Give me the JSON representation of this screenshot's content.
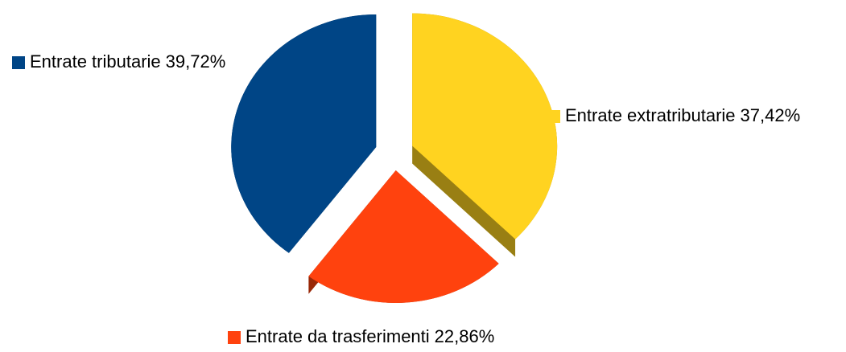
{
  "chart_data": {
    "type": "pie",
    "categories": [
      "Entrate extratributarie",
      "Entrate da trasferimenti",
      "Entrate tributarie"
    ],
    "values": [
      37.42,
      22.86,
      39.72
    ],
    "value_labels": [
      "37,42%",
      "22,86%",
      "39,72%"
    ],
    "colors": [
      "#ffd320",
      "#ff420e",
      "#004586"
    ]
  }
}
